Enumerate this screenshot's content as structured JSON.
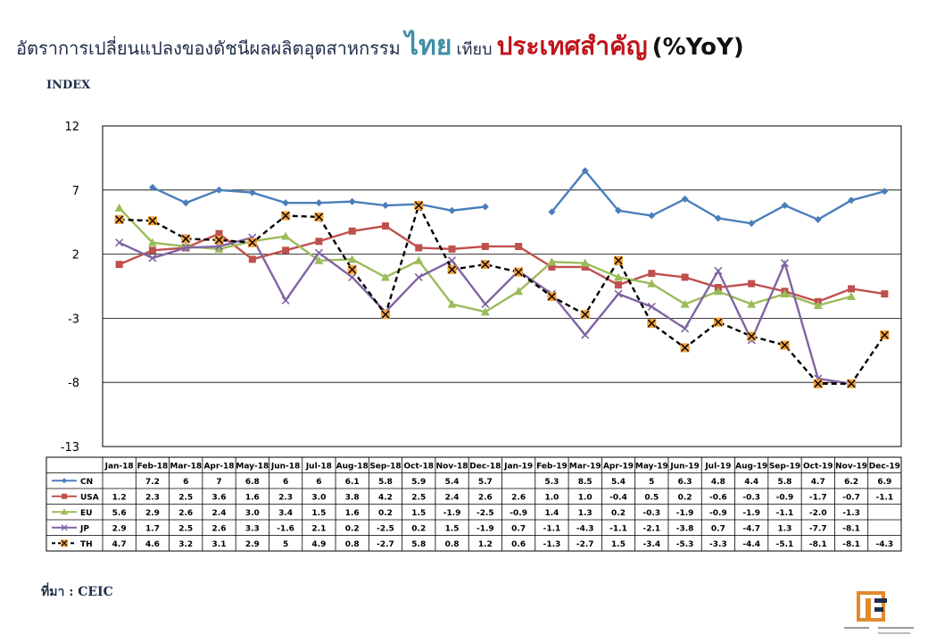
{
  "title": {
    "part1": "อัตราการเปลี่ยนแปลงของดัชนีผลผลิตอุตสาหกรรม",
    "part2": "ไทย",
    "part3": "เทียบ",
    "part4": "ประเทศสำคัญ",
    "part5": "(%YoY)"
  },
  "y_axis_title": "INDEX",
  "source": "ที่มา : CEIC",
  "colors": {
    "CN": "#4a7ebb",
    "USA": "#c0504d",
    "EU": "#9bbb59",
    "JP": "#8064a2",
    "TH": "#000000"
  },
  "chart_data": {
    "type": "line",
    "ylabel": "INDEX",
    "ylim": [
      -13,
      12
    ],
    "yticks": [
      12,
      7,
      2,
      -3,
      -8,
      -13
    ],
    "grid": true,
    "legend": "data-table",
    "categories": [
      "Jan-18",
      "Feb-18",
      "Mar-18",
      "Apr-18",
      "May-18",
      "Jun-18",
      "Jul-18",
      "Aug-18",
      "Sep-18",
      "Oct-18",
      "Nov-18",
      "Dec-18",
      "Jan-19",
      "Feb-19",
      "Mar-19",
      "Apr-19",
      "May-19",
      "Jun-19",
      "Jul-19",
      "Aug-19",
      "Sep-19",
      "Oct-19",
      "Nov-19",
      "Dec-19"
    ],
    "series": [
      {
        "name": "CN",
        "values": [
          null,
          7.2,
          6,
          7,
          6.8,
          6,
          6,
          6.1,
          5.8,
          5.9,
          5.4,
          5.7,
          null,
          5.3,
          8.5,
          5.4,
          5,
          6.3,
          4.8,
          4.4,
          5.8,
          4.7,
          6.2,
          6.9
        ],
        "labels": [
          "",
          "7.2",
          "6",
          "7",
          "6.8",
          "6",
          "6",
          "6.1",
          "5.8",
          "5.9",
          "5.4",
          "5.7",
          "",
          "5.3",
          "8.5",
          "5.4",
          "5",
          "6.3",
          "4.8",
          "4.4",
          "5.8",
          "4.7",
          "6.2",
          "6.9"
        ]
      },
      {
        "name": "USA",
        "values": [
          1.2,
          2.3,
          2.5,
          3.6,
          1.6,
          2.3,
          3.0,
          3.8,
          4.2,
          2.5,
          2.4,
          2.6,
          2.6,
          1.0,
          1.0,
          -0.4,
          0.5,
          0.2,
          -0.6,
          -0.3,
          -0.9,
          -1.7,
          -0.7,
          -1.1
        ],
        "labels": [
          "1.2",
          "2.3",
          "2.5",
          "3.6",
          "1.6",
          "2.3",
          "3.0",
          "3.8",
          "4.2",
          "2.5",
          "2.4",
          "2.6",
          "2.6",
          "1.0",
          "1.0",
          "-0.4",
          "0.5",
          "0.2",
          "-0.6",
          "-0.3",
          "-0.9",
          "-1.7",
          "-0.7",
          "-1.1"
        ]
      },
      {
        "name": "EU",
        "values": [
          5.6,
          2.9,
          2.6,
          2.4,
          3.0,
          3.4,
          1.5,
          1.6,
          0.2,
          1.5,
          -1.9,
          -2.5,
          -0.9,
          1.4,
          1.3,
          0.2,
          -0.3,
          -1.9,
          -0.9,
          -1.9,
          -1.1,
          -2.0,
          -1.3,
          null
        ],
        "labels": [
          "5.6",
          "2.9",
          "2.6",
          "2.4",
          "3.0",
          "3.4",
          "1.5",
          "1.6",
          "0.2",
          "1.5",
          "-1.9",
          "-2.5",
          "-0.9",
          "1.4",
          "1.3",
          "0.2",
          "-0.3",
          "-1.9",
          "-0.9",
          "-1.9",
          "-1.1",
          "-2.0",
          "-1.3",
          ""
        ]
      },
      {
        "name": "JP",
        "values": [
          2.9,
          1.7,
          2.5,
          2.6,
          3.3,
          -1.6,
          2.1,
          0.2,
          -2.5,
          0.2,
          1.5,
          -1.9,
          0.7,
          -1.1,
          -4.3,
          -1.1,
          -2.1,
          -3.8,
          0.7,
          -4.7,
          1.3,
          -7.7,
          -8.1,
          null
        ],
        "labels": [
          "2.9",
          "1.7",
          "2.5",
          "2.6",
          "3.3",
          "-1.6",
          "2.1",
          "0.2",
          "-2.5",
          "0.2",
          "1.5",
          "-1.9",
          "0.7",
          "-1.1",
          "-4.3",
          "-1.1",
          "-2.1",
          "-3.8",
          "0.7",
          "-4.7",
          "1.3",
          "-7.7",
          "-8.1",
          ""
        ]
      },
      {
        "name": "TH",
        "values": [
          4.7,
          4.6,
          3.2,
          3.1,
          2.9,
          5,
          4.9,
          0.8,
          -2.7,
          5.8,
          0.8,
          1.2,
          0.6,
          -1.3,
          -2.7,
          1.5,
          -3.4,
          -5.3,
          -3.3,
          -4.4,
          -5.1,
          -8.1,
          -8.1,
          -4.3
        ],
        "labels": [
          "4.7",
          "4.6",
          "3.2",
          "3.1",
          "2.9",
          "5",
          "4.9",
          "0.8",
          "-2.7",
          "5.8",
          "0.8",
          "1.2",
          "0.6",
          "-1.3",
          "-2.7",
          "1.5",
          "-3.4",
          "-5.3",
          "-3.3",
          "-4.4",
          "-5.1",
          "-8.1",
          "-8.1",
          "-4.3"
        ]
      }
    ]
  }
}
